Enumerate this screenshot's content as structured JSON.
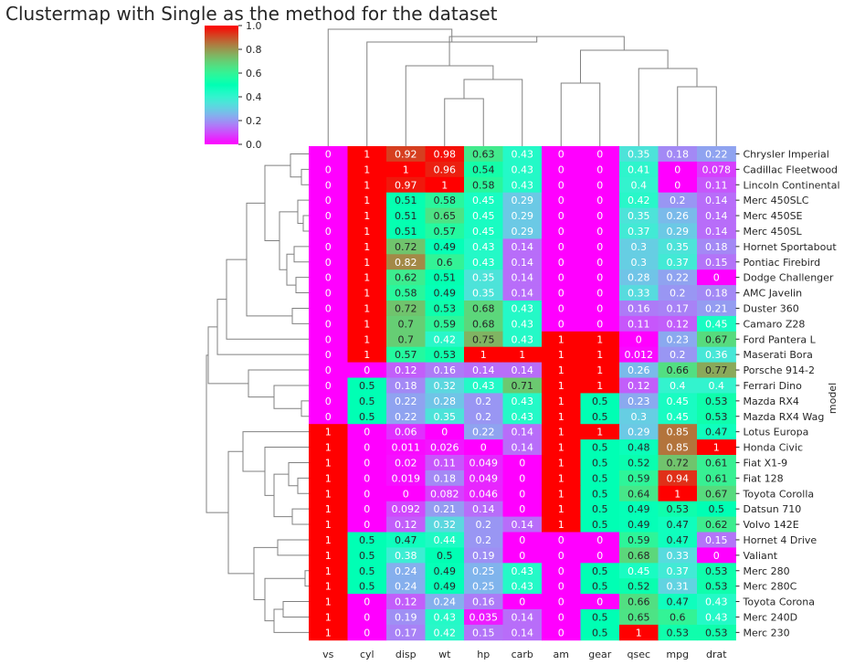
{
  "chart_data": {
    "type": "heatmap",
    "title": "Clustermap with Single as the method for the dataset",
    "ylabel": "model",
    "columns": [
      "vs",
      "cyl",
      "disp",
      "wt",
      "hp",
      "carb",
      "am",
      "gear",
      "qsec",
      "mpg",
      "drat"
    ],
    "rows": [
      {
        "label": "Chrysler Imperial",
        "values": [
          "0",
          "1",
          "0.92",
          "0.98",
          "0.63",
          "0.43",
          "0",
          "0",
          "0.35",
          "0.18",
          "0.22"
        ]
      },
      {
        "label": "Cadillac Fleetwood",
        "values": [
          "0",
          "1",
          "1",
          "0.96",
          "0.54",
          "0.43",
          "0",
          "0",
          "0.41",
          "0",
          "0.078"
        ]
      },
      {
        "label": "Lincoln Continental",
        "values": [
          "0",
          "1",
          "0.97",
          "1",
          "0.58",
          "0.43",
          "0",
          "0",
          "0.4",
          "0",
          "0.11"
        ]
      },
      {
        "label": "Merc 450SLC",
        "values": [
          "0",
          "1",
          "0.51",
          "0.58",
          "0.45",
          "0.29",
          "0",
          "0",
          "0.42",
          "0.2",
          "0.14"
        ]
      },
      {
        "label": "Merc 450SE",
        "values": [
          "0",
          "1",
          "0.51",
          "0.65",
          "0.45",
          "0.29",
          "0",
          "0",
          "0.35",
          "0.26",
          "0.14"
        ]
      },
      {
        "label": "Merc 450SL",
        "values": [
          "0",
          "1",
          "0.51",
          "0.57",
          "0.45",
          "0.29",
          "0",
          "0",
          "0.37",
          "0.29",
          "0.14"
        ]
      },
      {
        "label": "Hornet Sportabout",
        "values": [
          "0",
          "1",
          "0.72",
          "0.49",
          "0.43",
          "0.14",
          "0",
          "0",
          "0.3",
          "0.35",
          "0.18"
        ]
      },
      {
        "label": "Pontiac Firebird",
        "values": [
          "0",
          "1",
          "0.82",
          "0.6",
          "0.43",
          "0.14",
          "0",
          "0",
          "0.3",
          "0.37",
          "0.15"
        ]
      },
      {
        "label": "Dodge Challenger",
        "values": [
          "0",
          "1",
          "0.62",
          "0.51",
          "0.35",
          "0.14",
          "0",
          "0",
          "0.28",
          "0.22",
          "0"
        ]
      },
      {
        "label": "AMC Javelin",
        "values": [
          "0",
          "1",
          "0.58",
          "0.49",
          "0.35",
          "0.14",
          "0",
          "0",
          "0.33",
          "0.2",
          "0.18"
        ]
      },
      {
        "label": "Duster 360",
        "values": [
          "0",
          "1",
          "0.72",
          "0.53",
          "0.68",
          "0.43",
          "0",
          "0",
          "0.16",
          "0.17",
          "0.21"
        ]
      },
      {
        "label": "Camaro Z28",
        "values": [
          "0",
          "1",
          "0.7",
          "0.59",
          "0.68",
          "0.43",
          "0",
          "0",
          "0.11",
          "0.12",
          "0.45"
        ]
      },
      {
        "label": "Ford Pantera L",
        "values": [
          "0",
          "1",
          "0.7",
          "0.42",
          "0.75",
          "0.43",
          "1",
          "1",
          "0",
          "0.23",
          "0.67"
        ]
      },
      {
        "label": "Maserati Bora",
        "values": [
          "0",
          "1",
          "0.57",
          "0.53",
          "1",
          "1",
          "1",
          "1",
          "0.012",
          "0.2",
          "0.36"
        ]
      },
      {
        "label": "Porsche 914-2",
        "values": [
          "0",
          "0",
          "0.12",
          "0.16",
          "0.14",
          "0.14",
          "1",
          "1",
          "0.26",
          "0.66",
          "0.77"
        ]
      },
      {
        "label": "Ferrari Dino",
        "values": [
          "0",
          "0.5",
          "0.18",
          "0.32",
          "0.43",
          "0.71",
          "1",
          "1",
          "0.12",
          "0.4",
          "0.4"
        ]
      },
      {
        "label": "Mazda RX4",
        "values": [
          "0",
          "0.5",
          "0.22",
          "0.28",
          "0.2",
          "0.43",
          "1",
          "0.5",
          "0.23",
          "0.45",
          "0.53"
        ]
      },
      {
        "label": "Mazda RX4 Wag",
        "values": [
          "0",
          "0.5",
          "0.22",
          "0.35",
          "0.2",
          "0.43",
          "1",
          "0.5",
          "0.3",
          "0.45",
          "0.53"
        ]
      },
      {
        "label": "Lotus Europa",
        "values": [
          "1",
          "0",
          "0.06",
          "0",
          "0.22",
          "0.14",
          "1",
          "1",
          "0.29",
          "0.85",
          "0.47"
        ]
      },
      {
        "label": "Honda Civic",
        "values": [
          "1",
          "0",
          "0.011",
          "0.026",
          "0",
          "0.14",
          "1",
          "0.5",
          "0.48",
          "0.85",
          "1"
        ]
      },
      {
        "label": "Fiat X1-9",
        "values": [
          "1",
          "0",
          "0.02",
          "0.11",
          "0.049",
          "0",
          "1",
          "0.5",
          "0.52",
          "0.72",
          "0.61"
        ]
      },
      {
        "label": "Fiat 128",
        "values": [
          "1",
          "0",
          "0.019",
          "0.18",
          "0.049",
          "0",
          "1",
          "0.5",
          "0.59",
          "0.94",
          "0.61"
        ]
      },
      {
        "label": "Toyota Corolla",
        "values": [
          "1",
          "0",
          "0",
          "0.082",
          "0.046",
          "0",
          "1",
          "0.5",
          "0.64",
          "1",
          "0.67"
        ]
      },
      {
        "label": "Datsun 710",
        "values": [
          "1",
          "0",
          "0.092",
          "0.21",
          "0.14",
          "0",
          "1",
          "0.5",
          "0.49",
          "0.53",
          "0.5"
        ]
      },
      {
        "label": "Volvo 142E",
        "values": [
          "1",
          "0",
          "0.12",
          "0.32",
          "0.2",
          "0.14",
          "1",
          "0.5",
          "0.49",
          "0.47",
          "0.62"
        ]
      },
      {
        "label": "Hornet 4 Drive",
        "values": [
          "1",
          "0.5",
          "0.47",
          "0.44",
          "0.2",
          "0",
          "0",
          "0",
          "0.59",
          "0.47",
          "0.15"
        ]
      },
      {
        "label": "Valiant",
        "values": [
          "1",
          "0.5",
          "0.38",
          "0.5",
          "0.19",
          "0",
          "0",
          "0",
          "0.68",
          "0.33",
          "0"
        ]
      },
      {
        "label": "Merc 280",
        "values": [
          "1",
          "0.5",
          "0.24",
          "0.49",
          "0.25",
          "0.43",
          "0",
          "0.5",
          "0.45",
          "0.37",
          "0.53"
        ]
      },
      {
        "label": "Merc 280C",
        "values": [
          "1",
          "0.5",
          "0.24",
          "0.49",
          "0.25",
          "0.43",
          "0",
          "0.5",
          "0.52",
          "0.31",
          "0.53"
        ]
      },
      {
        "label": "Toyota Corona",
        "values": [
          "1",
          "0",
          "0.12",
          "0.24",
          "0.16",
          "0",
          "0",
          "0",
          "0.66",
          "0.47",
          "0.43"
        ]
      },
      {
        "label": "Merc 240D",
        "values": [
          "1",
          "0",
          "0.19",
          "0.43",
          "0.035",
          "0.14",
          "0",
          "0.5",
          "0.65",
          "0.6",
          "0.43"
        ]
      },
      {
        "label": "Merc 230",
        "values": [
          "1",
          "0",
          "0.17",
          "0.42",
          "0.15",
          "0.14",
          "0",
          "0.5",
          "1",
          "0.53",
          "0.53"
        ]
      }
    ],
    "colorbar": {
      "colormap": "rainbow",
      "vmin": 0,
      "vmax": 1,
      "ticks": [
        "0.0",
        "0.2",
        "0.4",
        "0.6",
        "0.8",
        "1.0"
      ]
    },
    "method": "single",
    "row_dendrogram": true,
    "col_dendrogram": true
  }
}
